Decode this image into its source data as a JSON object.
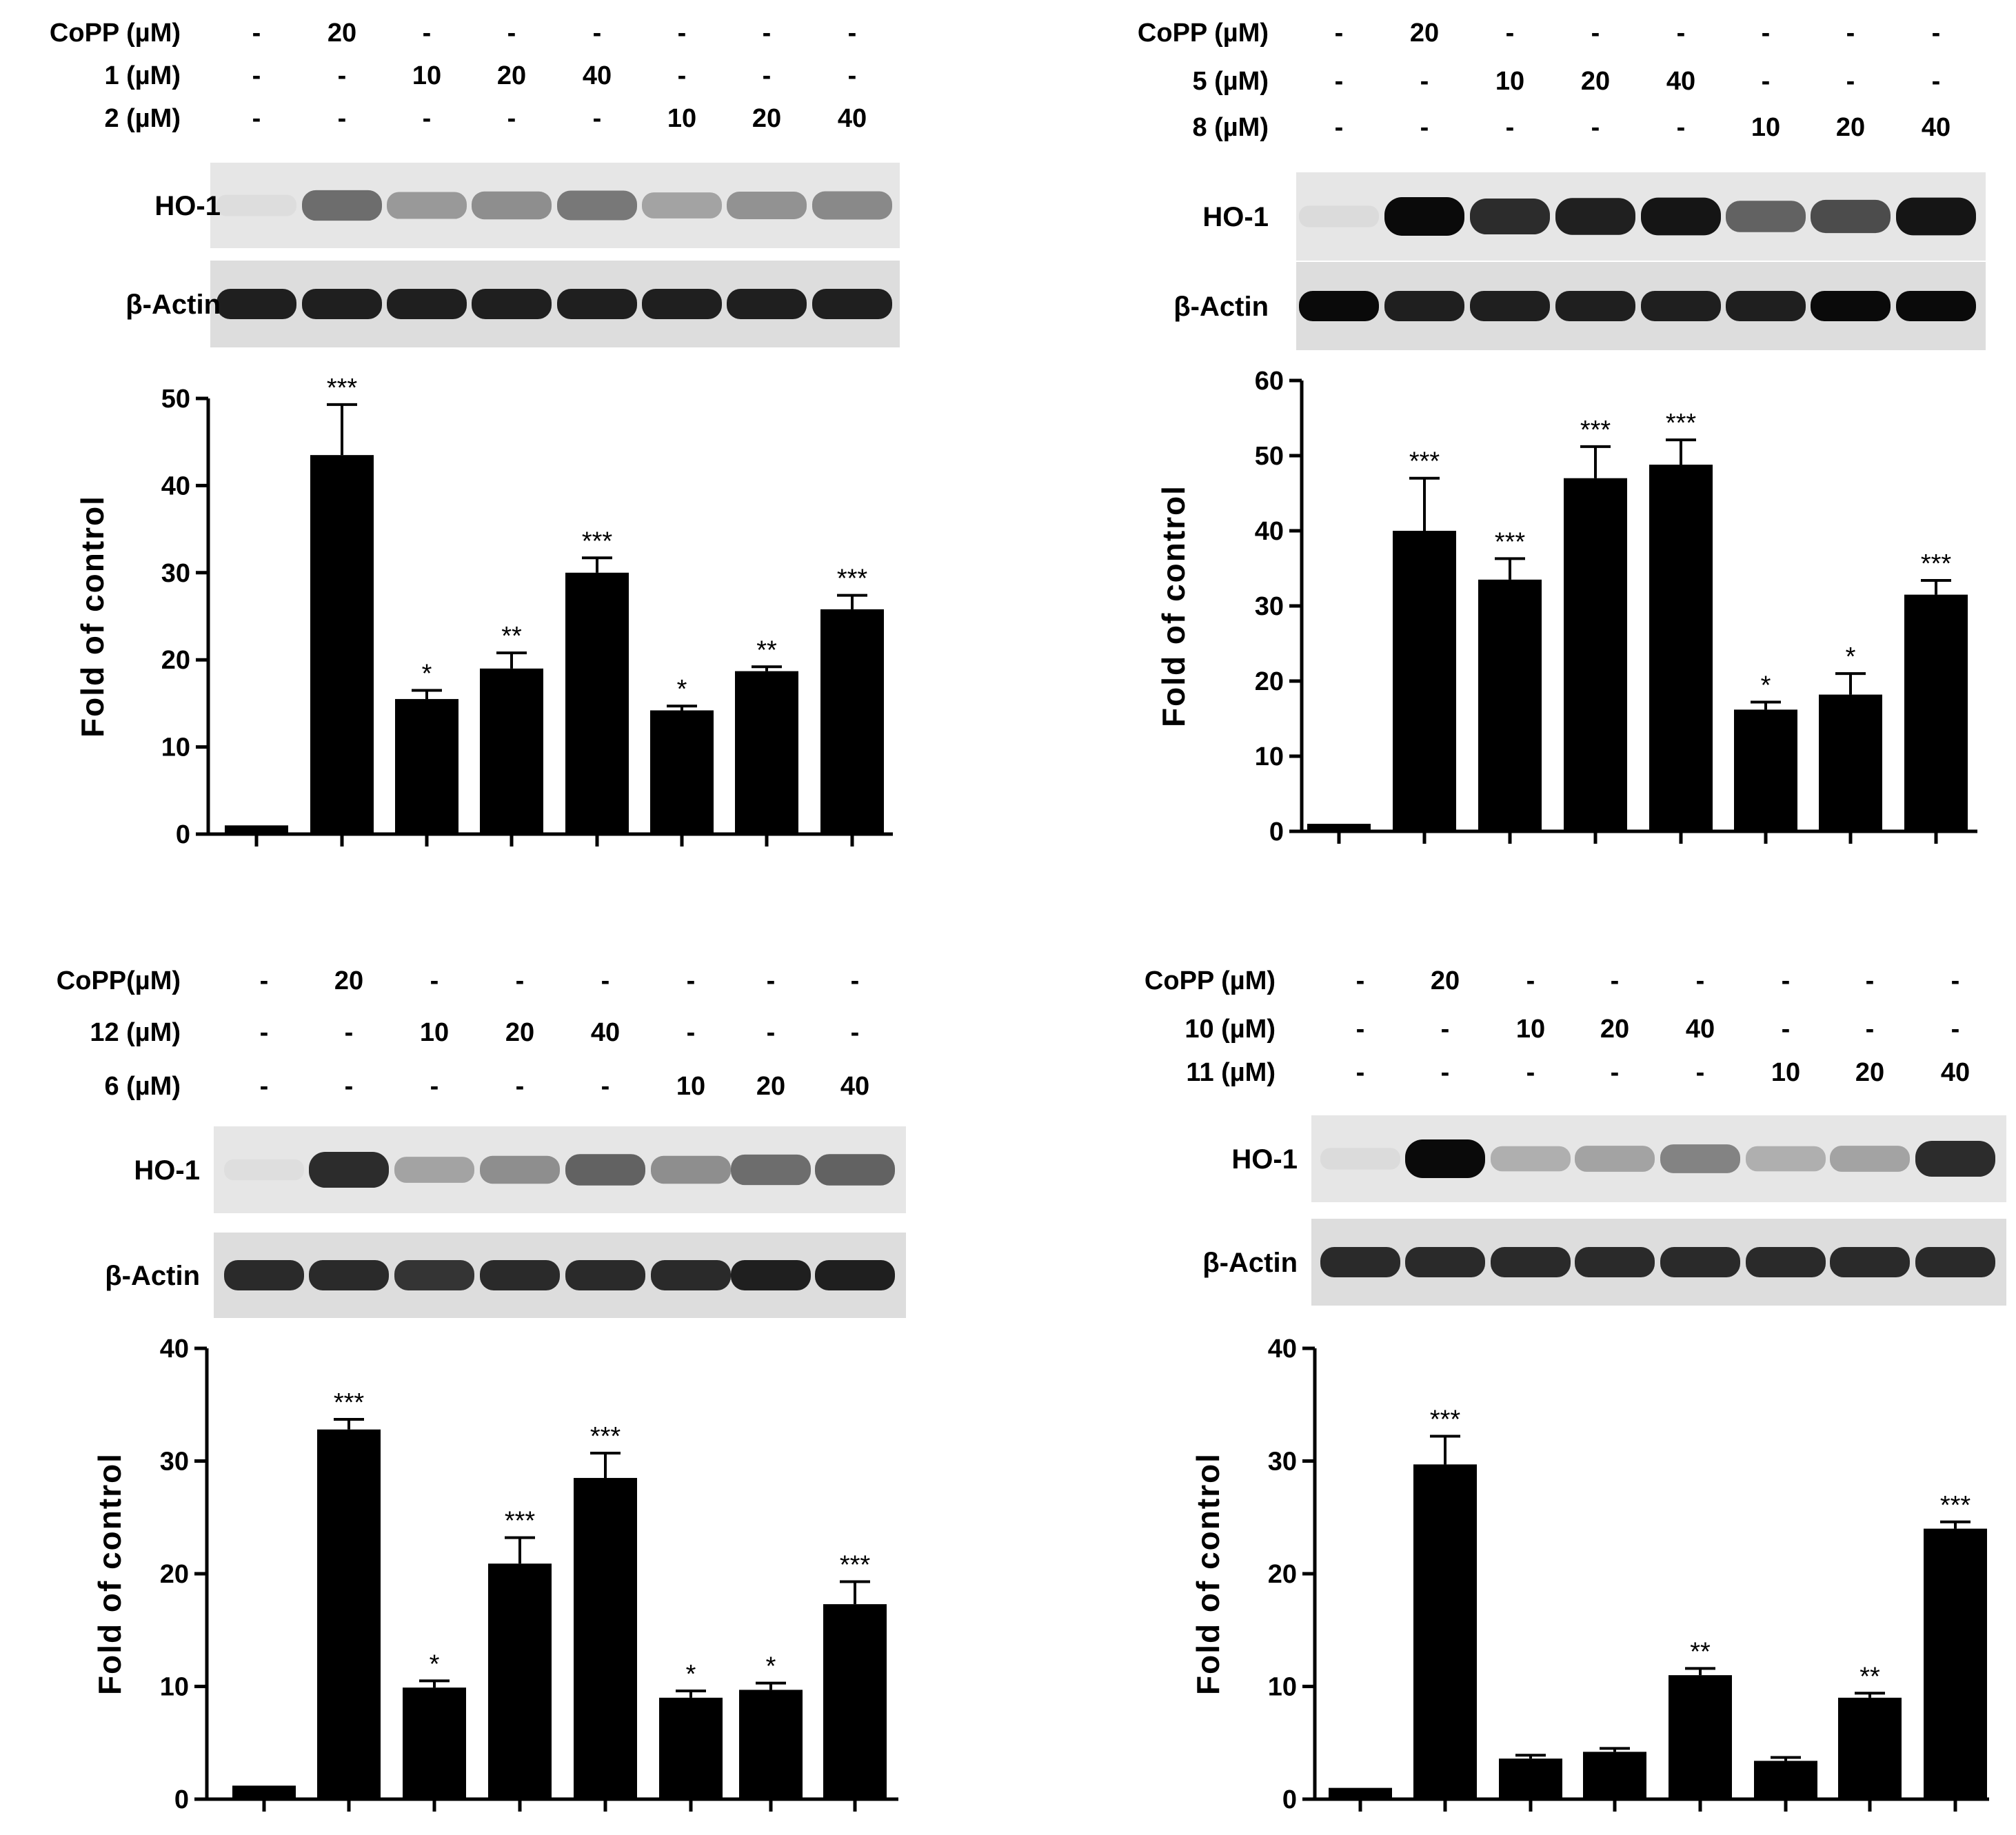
{
  "chart_data": [
    {
      "type": "bar",
      "title": "",
      "treatment_rows": [
        {
          "label": "CoPP (µM)",
          "values": [
            "-",
            "20",
            "-",
            "-",
            "-",
            "-",
            "-",
            "-"
          ]
        },
        {
          "label": "1 (µM)",
          "values": [
            "-",
            "-",
            "10",
            "20",
            "40",
            "-",
            "-",
            "-"
          ]
        },
        {
          "label": "2 (µM)",
          "values": [
            "-",
            "-",
            "-",
            "-",
            "-",
            "10",
            "20",
            "40"
          ]
        }
      ],
      "blot_labels": [
        "HO-1",
        "β-Actin"
      ],
      "ho1_intensity": [
        0.04,
        0.55,
        0.35,
        0.4,
        0.5,
        0.3,
        0.38,
        0.42
      ],
      "actin_intensity": [
        0.9,
        0.9,
        0.9,
        0.9,
        0.9,
        0.9,
        0.9,
        0.9
      ],
      "values": [
        1,
        43.5,
        15.5,
        19,
        30,
        14.2,
        18.7,
        25.8
      ],
      "errors": [
        0,
        5.8,
        1.0,
        1.8,
        1.7,
        0.5,
        0.5,
        1.6
      ],
      "significance": [
        "",
        "***",
        "*",
        "**",
        "***",
        "*",
        "**",
        "***"
      ],
      "ylabel": "Fold of control",
      "yticks": [
        "0",
        "10",
        "20",
        "30",
        "40",
        "50"
      ],
      "ylim": [
        0,
        50
      ]
    },
    {
      "type": "bar",
      "title": "",
      "treatment_rows": [
        {
          "label": "CoPP (µM)",
          "values": [
            "-",
            "20",
            "-",
            "-",
            "-",
            "-",
            "-",
            "-"
          ]
        },
        {
          "label": "5 (µM)",
          "values": [
            "-",
            "-",
            "10",
            "20",
            "40",
            "-",
            "-",
            "-"
          ]
        },
        {
          "label": "8 (µM)",
          "values": [
            "-",
            "-",
            "-",
            "-",
            "-",
            "10",
            "20",
            "40"
          ]
        }
      ],
      "blot_labels": [
        "HO-1",
        "β-Actin"
      ],
      "ho1_intensity": [
        0.05,
        1.0,
        0.85,
        0.9,
        0.95,
        0.6,
        0.7,
        0.95
      ],
      "actin_intensity": [
        1.0,
        0.9,
        0.9,
        0.9,
        0.9,
        0.9,
        1.0,
        1.0
      ],
      "values": [
        1,
        40,
        33.5,
        47,
        48.8,
        16.2,
        18.2,
        31.5
      ],
      "errors": [
        0,
        7,
        2.8,
        4.2,
        3.3,
        1,
        2.8,
        1.9
      ],
      "significance": [
        "",
        "***",
        "***",
        "***",
        "***",
        "*",
        "*",
        "***"
      ],
      "ylabel": "Fold of control",
      "yticks": [
        "0",
        "10",
        "20",
        "30",
        "40",
        "50",
        "60"
      ],
      "ylim": [
        0,
        60
      ]
    },
    {
      "type": "bar",
      "title": "",
      "treatment_rows": [
        {
          "label": "CoPP(µM)",
          "values": [
            "-",
            "20",
            "-",
            "-",
            "-",
            "-",
            "-",
            "-"
          ]
        },
        {
          "label": "12 (µM)",
          "values": [
            "-",
            "-",
            "10",
            "20",
            "40",
            "-",
            "-",
            "-"
          ]
        },
        {
          "label": "6 (µM)",
          "values": [
            "-",
            "-",
            "-",
            "-",
            "-",
            "10",
            "20",
            "40"
          ]
        }
      ],
      "blot_labels": [
        "HO-1",
        "β-Actin"
      ],
      "ho1_intensity": [
        0.02,
        0.85,
        0.3,
        0.4,
        0.6,
        0.4,
        0.55,
        0.6
      ],
      "actin_intensity": [
        0.85,
        0.85,
        0.8,
        0.85,
        0.85,
        0.85,
        0.9,
        0.9
      ],
      "values": [
        1.2,
        32.8,
        9.9,
        20.9,
        28.5,
        9,
        9.7,
        17.3
      ],
      "errors": [
        0,
        0.9,
        0.6,
        2.3,
        2.2,
        0.6,
        0.6,
        2
      ],
      "significance": [
        "",
        "***",
        "*",
        "***",
        "***",
        "*",
        "*",
        "***"
      ],
      "ylabel": "Fold of control",
      "yticks": [
        "0",
        "10",
        "20",
        "30",
        "40"
      ],
      "ylim": [
        0,
        40
      ]
    },
    {
      "type": "bar",
      "title": "",
      "treatment_rows": [
        {
          "label": "CoPP (µM)",
          "values": [
            "-",
            "20",
            "-",
            "-",
            "-",
            "-",
            "-",
            "-"
          ]
        },
        {
          "label": "10 (µM)",
          "values": [
            "-",
            "-",
            "10",
            "20",
            "40",
            "-",
            "-",
            "-"
          ]
        },
        {
          "label": "11 (µM)",
          "values": [
            "-",
            "-",
            "-",
            "-",
            "-",
            "10",
            "20",
            "40"
          ]
        }
      ],
      "blot_labels": [
        "HO-1",
        "β-Actin"
      ],
      "ho1_intensity": [
        0.05,
        1.0,
        0.25,
        0.3,
        0.45,
        0.25,
        0.3,
        0.85
      ],
      "actin_intensity": [
        0.85,
        0.85,
        0.85,
        0.85,
        0.85,
        0.85,
        0.85,
        0.85
      ],
      "values": [
        1,
        29.7,
        3.6,
        4.2,
        11,
        3.4,
        9,
        24
      ],
      "errors": [
        0,
        2.5,
        0.3,
        0.3,
        0.6,
        0.3,
        0.4,
        0.6
      ],
      "significance": [
        "",
        "***",
        "",
        "",
        "**",
        "",
        "**",
        "***"
      ],
      "ylabel": "Fold of control",
      "yticks": [
        "0",
        "10",
        "20",
        "30",
        "40"
      ],
      "ylim": [
        0,
        40
      ]
    }
  ]
}
